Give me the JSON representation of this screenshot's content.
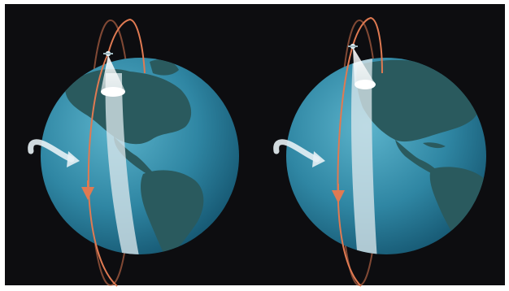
{
  "figure": {
    "frame_border": "#ffffff",
    "background": "#0d0d10",
    "ocean_color": "#2f86a3",
    "land_color": "#2a5a5e",
    "orbit_color": "#e07a52",
    "swath_color": "#d8e6ea",
    "rotation_arrow_color": "#e7f1f5",
    "globes": [
      {
        "id": "left",
        "subject": "satellite-over-north-pole",
        "rotation_arrow": "curved-arrow-icon",
        "orbit": "polar"
      },
      {
        "id": "right",
        "subject": "satellite-over-north-pole",
        "rotation_arrow": "curved-arrow-icon",
        "orbit": "polar"
      }
    ]
  }
}
